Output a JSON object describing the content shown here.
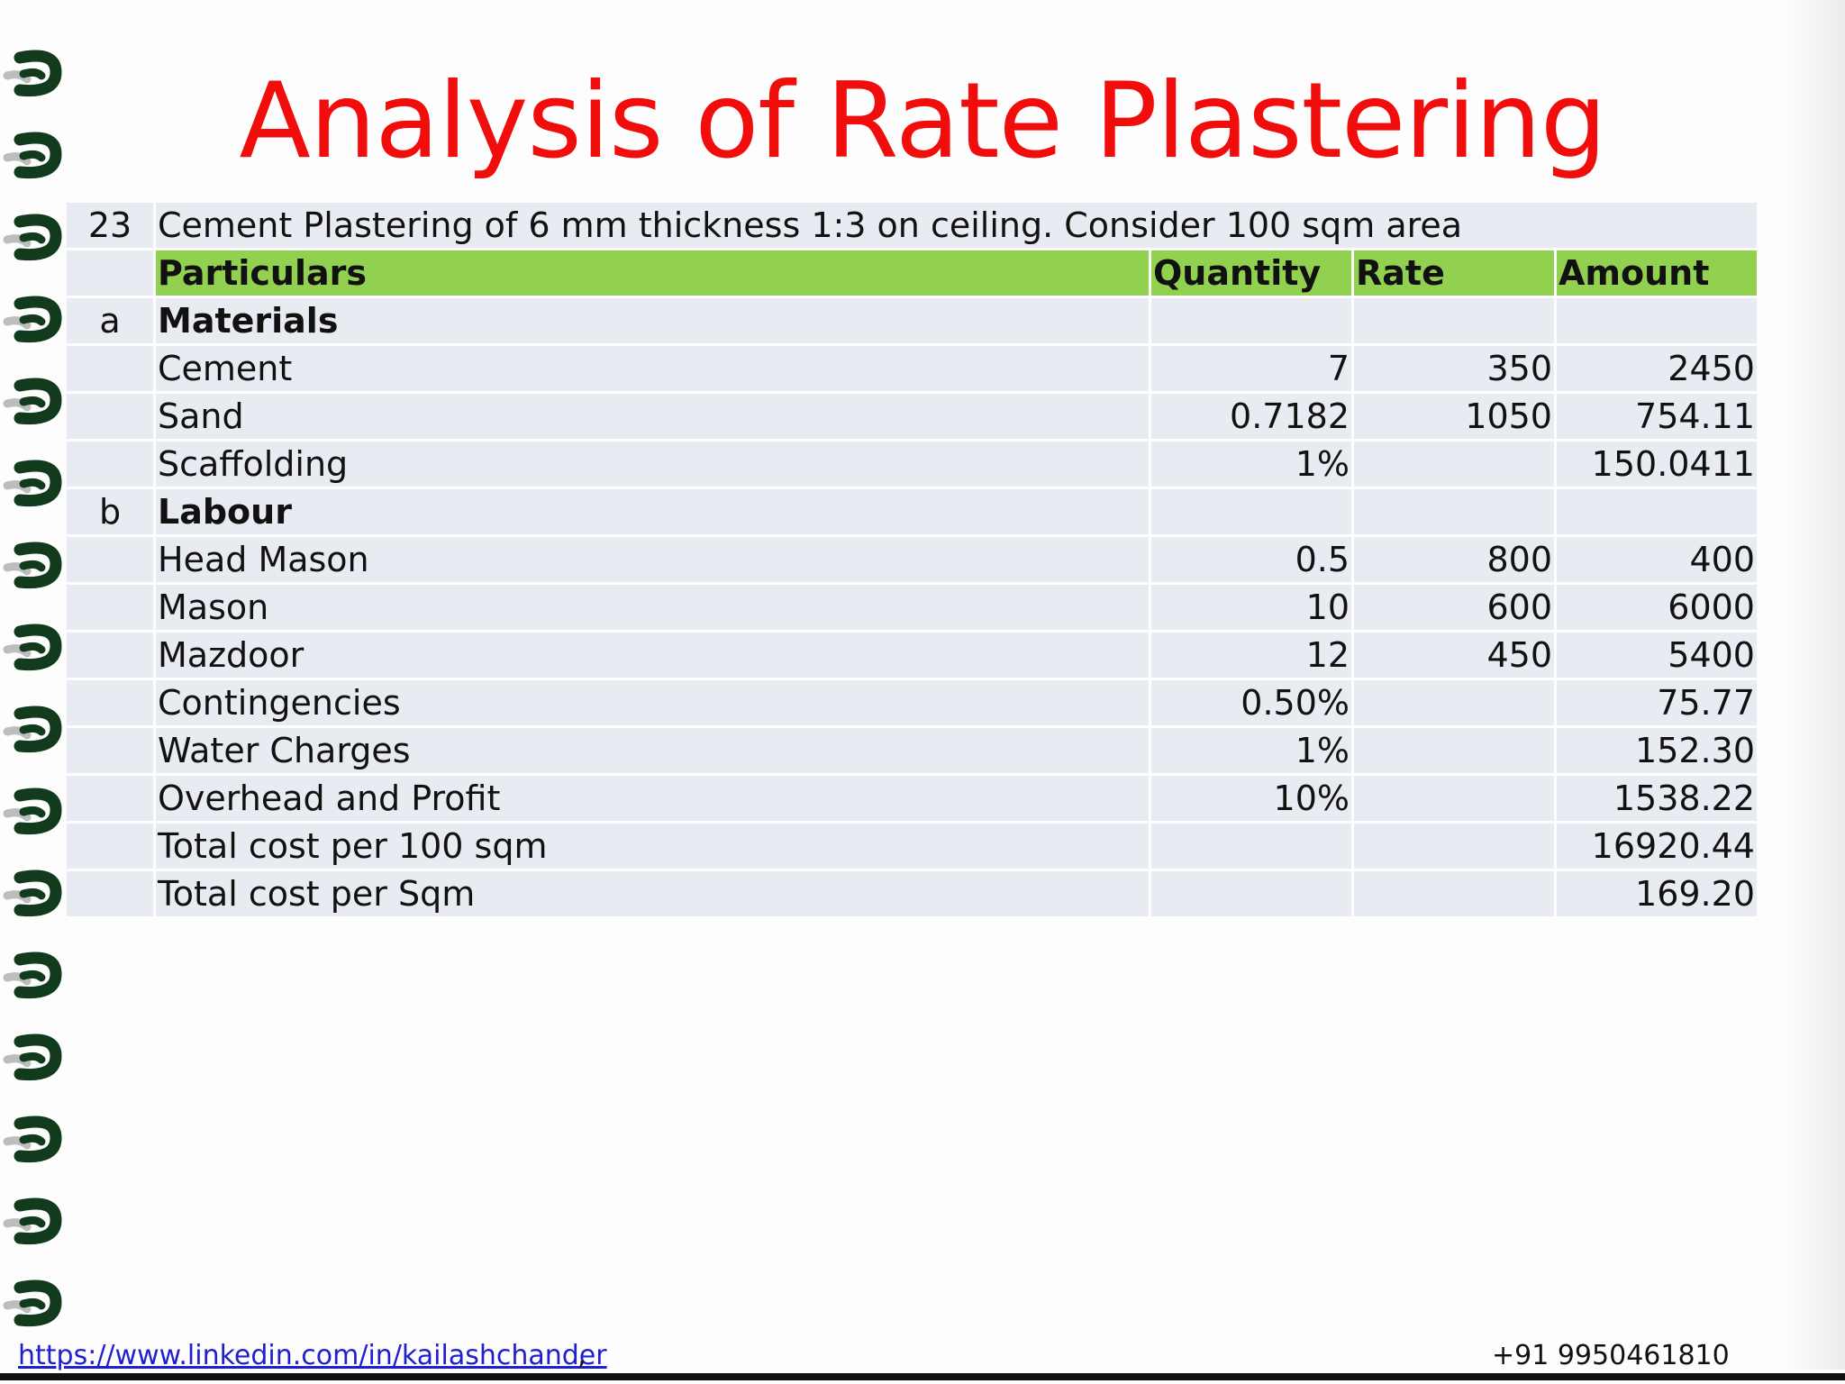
{
  "slide": {
    "title": "Analysis of Rate Plastering"
  },
  "table": {
    "intro": {
      "index": "23",
      "text": "Cement Plastering of 6 mm thickness 1:3 on ceiling. Consider 100 sqm area"
    },
    "header": {
      "particulars": "Particulars",
      "quantity": "Quantity",
      "rate": "Rate",
      "amount": "Amount"
    },
    "rows": [
      {
        "index": "a",
        "particulars": "Materials",
        "quantity": "",
        "rate": "",
        "amount": "",
        "bold": true
      },
      {
        "index": "",
        "particulars": "Cement",
        "quantity": "7",
        "rate": "350",
        "amount": "2450",
        "bold": false
      },
      {
        "index": "",
        "particulars": "Sand",
        "quantity": "0.7182",
        "rate": "1050",
        "amount": "754.11",
        "bold": false
      },
      {
        "index": "",
        "particulars": "Scaffolding",
        "quantity": "1%",
        "rate": "",
        "amount": "150.0411",
        "bold": false
      },
      {
        "index": "b",
        "particulars": "Labour",
        "quantity": "",
        "rate": "",
        "amount": "",
        "bold": true
      },
      {
        "index": "",
        "particulars": "Head Mason",
        "quantity": "0.5",
        "rate": "800",
        "amount": "400",
        "bold": false
      },
      {
        "index": "",
        "particulars": "Mason",
        "quantity": "10",
        "rate": "600",
        "amount": "6000",
        "bold": false
      },
      {
        "index": "",
        "particulars": "Mazdoor",
        "quantity": "12",
        "rate": "450",
        "amount": "5400",
        "bold": false
      },
      {
        "index": "",
        "particulars": "Contingencies",
        "quantity": "0.50%",
        "rate": "",
        "amount": "75.77",
        "bold": false
      },
      {
        "index": "",
        "particulars": "Water Charges",
        "quantity": "1%",
        "rate": "",
        "amount": "152.30",
        "bold": false
      },
      {
        "index": "",
        "particulars": "Overhead and Profit",
        "quantity": "10%",
        "rate": "",
        "amount": "1538.22",
        "bold": false
      },
      {
        "index": "",
        "particulars": "Total cost per 100 sqm",
        "quantity": "",
        "rate": "",
        "amount": "16920.44",
        "bold": false
      },
      {
        "index": "",
        "particulars": "Total cost per Sqm",
        "quantity": "",
        "rate": "",
        "amount": "169.20",
        "bold": false
      }
    ]
  },
  "footer": {
    "link": "https://www.linkedin.com/in/kailashchander",
    "separator": ",",
    "phone": "+91 9950461810"
  },
  "colors": {
    "title": "#f20d0d",
    "header_fill": "#92d050",
    "cell_fill": "#e9ebf2",
    "link": "#1f1fcf",
    "ring": "#123b1e"
  }
}
